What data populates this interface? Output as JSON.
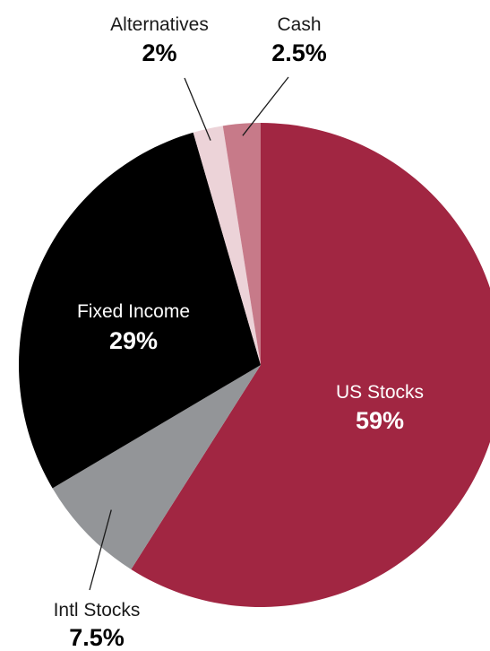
{
  "chart_data": {
    "type": "pie",
    "slices": [
      {
        "label": "US Stocks",
        "value": 59,
        "value_label": "59%",
        "color": "#a12642"
      },
      {
        "label": "Intl Stocks",
        "value": 7.5,
        "value_label": "7.5%",
        "color": "#939598"
      },
      {
        "label": "Fixed Income",
        "value": 29,
        "value_label": "29%",
        "color": "#000000"
      },
      {
        "label": "Alternatives",
        "value": 2,
        "value_label": "2%",
        "color": "#ecd3d8"
      },
      {
        "label": "Cash",
        "value": 2.5,
        "value_label": "2.5%",
        "color": "#c77a89"
      }
    ]
  }
}
